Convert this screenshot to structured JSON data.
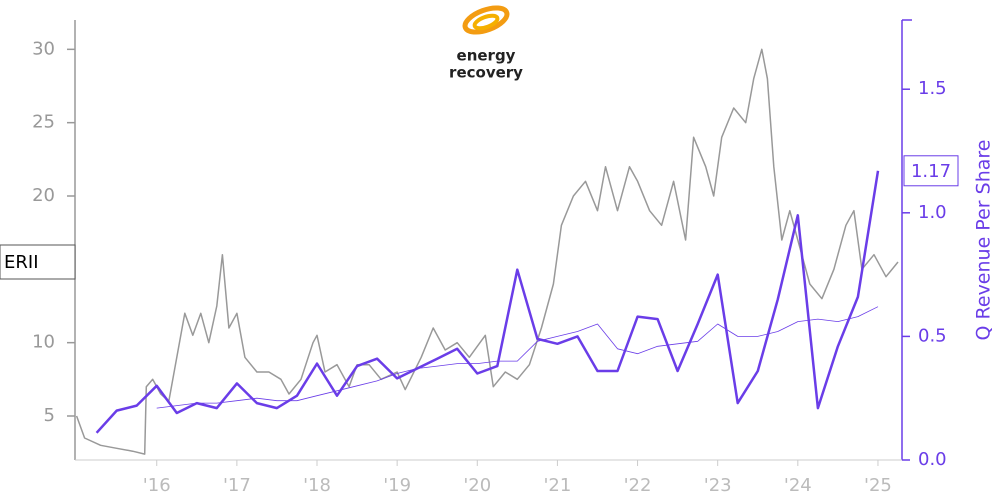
{
  "chart_data": {
    "type": "line",
    "logo": {
      "line1": "energy",
      "line2": "recovery"
    },
    "y2_label": "Q Revenue Per Share",
    "xlim": [
      2014.98,
      2025.3
    ],
    "xticks": [
      {
        "value": 2016,
        "label": "'16"
      },
      {
        "value": 2017,
        "label": "'17"
      },
      {
        "value": 2018,
        "label": "'18"
      },
      {
        "value": 2019,
        "label": "'19"
      },
      {
        "value": 2020,
        "label": "'20"
      },
      {
        "value": 2021,
        "label": "'21"
      },
      {
        "value": 2022,
        "label": "'22"
      },
      {
        "value": 2023,
        "label": "'23"
      },
      {
        "value": 2024,
        "label": "'24"
      },
      {
        "value": 2025,
        "label": "'25"
      }
    ],
    "ylim": [
      2,
      32
    ],
    "yticks": [
      5,
      10,
      20,
      25,
      30
    ],
    "y2lim": [
      0,
      1.78
    ],
    "y2ticks": [
      {
        "value": 0,
        "label": "0.0"
      },
      {
        "value": 0.5,
        "label": "0.5"
      },
      {
        "value": 1,
        "label": "1.0"
      },
      {
        "value": 1.5,
        "label": "1.5"
      }
    ],
    "y_marker_label": "ERII",
    "y2_marker": {
      "value": 1.17,
      "label": "1.17"
    },
    "series": [
      {
        "color": "#999999",
        "width": 1.5,
        "x": [
          2015.0,
          2015.1,
          2015.3,
          2015.5,
          2015.7,
          2015.85,
          2015.87,
          2015.95,
          2016.05,
          2016.15,
          2016.25,
          2016.35,
          2016.45,
          2016.55,
          2016.65,
          2016.75,
          2016.82,
          2016.9,
          2017.0,
          2017.1,
          2017.25,
          2017.4,
          2017.55,
          2017.65,
          2017.8,
          2017.95,
          2018.0,
          2018.1,
          2018.25,
          2018.4,
          2018.5,
          2018.65,
          2018.8,
          2019.0,
          2019.1,
          2019.3,
          2019.45,
          2019.6,
          2019.75,
          2019.9,
          2020.1,
          2020.2,
          2020.35,
          2020.5,
          2020.65,
          2020.8,
          2020.95,
          2021.05,
          2021.2,
          2021.35,
          2021.5,
          2021.6,
          2021.75,
          2021.9,
          2022.0,
          2022.15,
          2022.3,
          2022.45,
          2022.6,
          2022.7,
          2022.85,
          2022.95,
          2023.05,
          2023.2,
          2023.35,
          2023.45,
          2023.55,
          2023.62,
          2023.7,
          2023.8,
          2023.9,
          2024.0,
          2024.15,
          2024.3,
          2024.45,
          2024.6,
          2024.7,
          2024.8,
          2024.95,
          2025.1,
          2025.25
        ],
        "values": [
          5,
          3.5,
          3,
          2.8,
          2.6,
          2.4,
          7,
          7.5,
          6.5,
          6,
          9,
          12,
          10.5,
          12,
          10,
          12.5,
          16,
          11,
          12,
          9,
          8,
          8,
          7.5,
          6.5,
          7.5,
          10,
          10.5,
          8,
          8.5,
          7,
          8.5,
          8.5,
          7.5,
          8,
          6.8,
          9,
          11,
          9.5,
          10,
          9,
          10.5,
          7,
          8,
          7.5,
          8.5,
          11,
          14,
          18,
          20,
          21,
          19,
          22,
          19,
          22,
          21,
          19,
          18,
          21,
          17,
          24,
          22,
          20,
          24,
          26,
          25,
          28,
          30,
          28,
          22,
          17,
          19,
          17,
          14,
          13,
          15,
          18,
          19,
          15,
          16,
          14.5,
          15.5
        ]
      },
      {
        "color": "#6a3de8",
        "width": 2.5,
        "axis": "y2",
        "x": [
          2015.25,
          2015.5,
          2015.75,
          2016.0,
          2016.25,
          2016.5,
          2016.75,
          2017.0,
          2017.25,
          2017.5,
          2017.75,
          2018.0,
          2018.25,
          2018.5,
          2018.75,
          2019.0,
          2019.25,
          2019.5,
          2019.75,
          2020.0,
          2020.25,
          2020.5,
          2020.75,
          2021.0,
          2021.25,
          2021.5,
          2021.75,
          2022.0,
          2022.25,
          2022.5,
          2022.75,
          2023.0,
          2023.25,
          2023.5,
          2023.75,
          2024.0,
          2024.25,
          2024.5,
          2024.75,
          2025.0
        ],
        "values": [
          0.11,
          0.2,
          0.22,
          0.3,
          0.19,
          0.23,
          0.21,
          0.31,
          0.23,
          0.21,
          0.26,
          0.39,
          0.26,
          0.38,
          0.41,
          0.33,
          0.37,
          0.41,
          0.45,
          0.35,
          0.38,
          0.77,
          0.49,
          0.47,
          0.5,
          0.36,
          0.36,
          0.58,
          0.57,
          0.36,
          0.55,
          0.75,
          0.23,
          0.36,
          0.65,
          0.99,
          0.21,
          0.46,
          0.66,
          1.17
        ]
      },
      {
        "color": "#6a3de8",
        "width": 0.8,
        "axis": "y2",
        "x": [
          2015.25,
          2015.5,
          2015.75,
          2016.0,
          2016.25,
          2016.5,
          2016.75,
          2017.0,
          2017.25,
          2017.5,
          2017.75,
          2018.0,
          2018.25,
          2018.5,
          2018.75,
          2019.0,
          2019.25,
          2019.5,
          2019.75,
          2020.0,
          2020.25,
          2020.5,
          2020.75,
          2021.0,
          2021.25,
          2021.5,
          2021.75,
          2022.0,
          2022.25,
          2022.5,
          2022.75,
          2023.0,
          2023.25,
          2023.5,
          2023.75,
          2024.0,
          2024.25,
          2024.5,
          2024.75,
          2025.0
        ],
        "values": [
          null,
          null,
          null,
          0.21,
          0.22,
          0.23,
          0.23,
          0.24,
          0.25,
          0.24,
          0.24,
          0.26,
          0.28,
          0.3,
          0.32,
          0.35,
          0.37,
          0.38,
          0.39,
          0.39,
          0.4,
          0.4,
          0.48,
          0.5,
          0.52,
          0.55,
          0.45,
          0.43,
          0.46,
          0.47,
          0.48,
          0.55,
          0.5,
          0.5,
          0.52,
          0.56,
          0.57,
          0.56,
          0.58,
          0.62
        ]
      }
    ]
  }
}
